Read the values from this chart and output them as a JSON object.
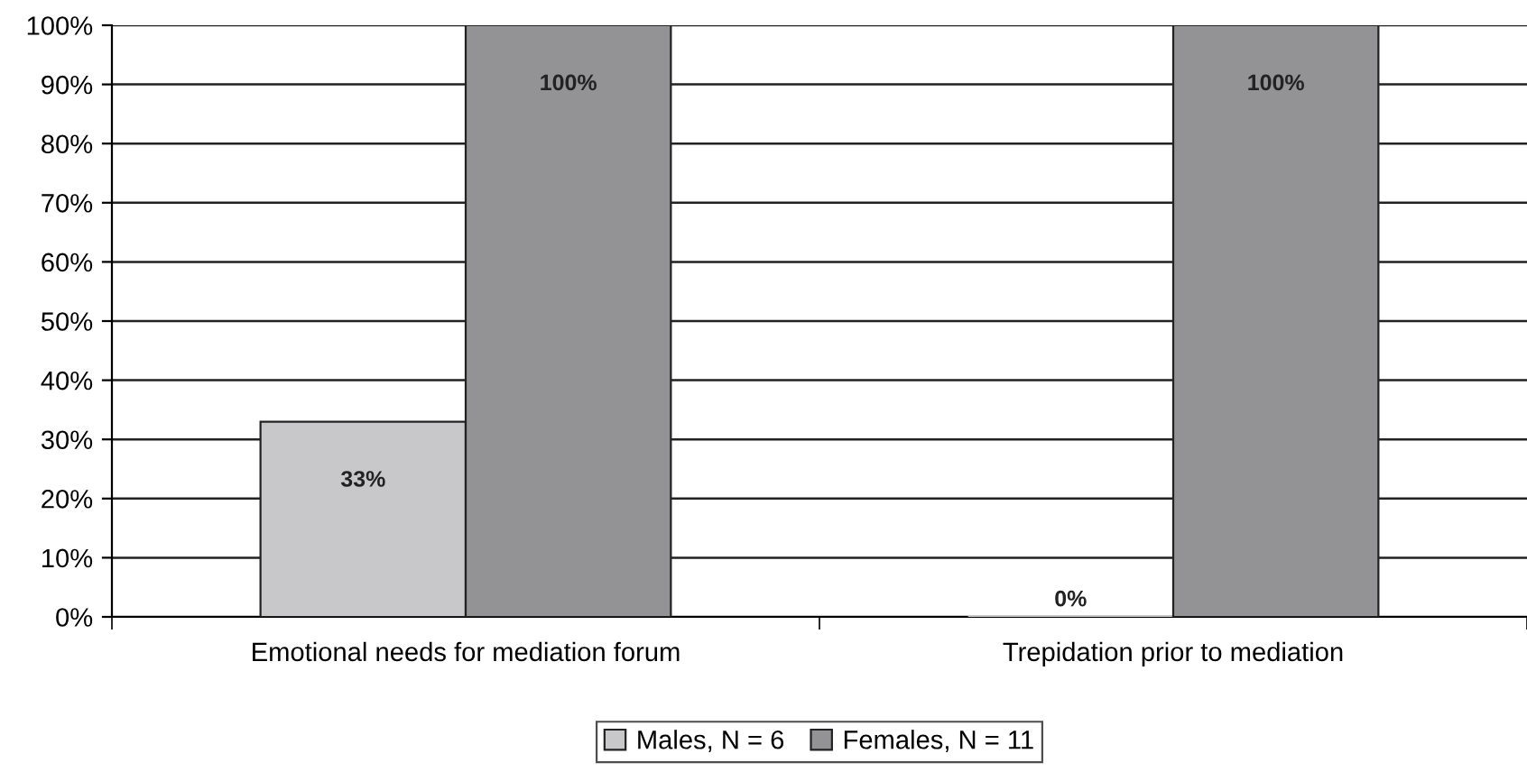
{
  "chart_data": {
    "type": "bar",
    "categories": [
      "Emotional needs for mediation forum",
      "Trepidation prior to mediation"
    ],
    "series": [
      {
        "name": "Males, N = 6",
        "color": "#c8c8ca",
        "values": [
          33,
          0
        ],
        "value_labels": [
          "33%",
          "0%"
        ]
      },
      {
        "name": "Females, N = 11",
        "color": "#939396",
        "values": [
          100,
          100
        ],
        "value_labels": [
          "100%",
          "100%"
        ]
      }
    ],
    "ylim": [
      0,
      100
    ],
    "yticks": [
      {
        "value": 0,
        "label": "0%"
      },
      {
        "value": 10,
        "label": "10%"
      },
      {
        "value": 20,
        "label": "20%"
      },
      {
        "value": 30,
        "label": "30%"
      },
      {
        "value": 40,
        "label": "40%"
      },
      {
        "value": 50,
        "label": "50%"
      },
      {
        "value": 60,
        "label": "60%"
      },
      {
        "value": 70,
        "label": "70%"
      },
      {
        "value": 80,
        "label": "80%"
      },
      {
        "value": 90,
        "label": "90%"
      },
      {
        "value": 100,
        "label": "100%"
      }
    ],
    "grid": "y",
    "legend": "bottom"
  }
}
